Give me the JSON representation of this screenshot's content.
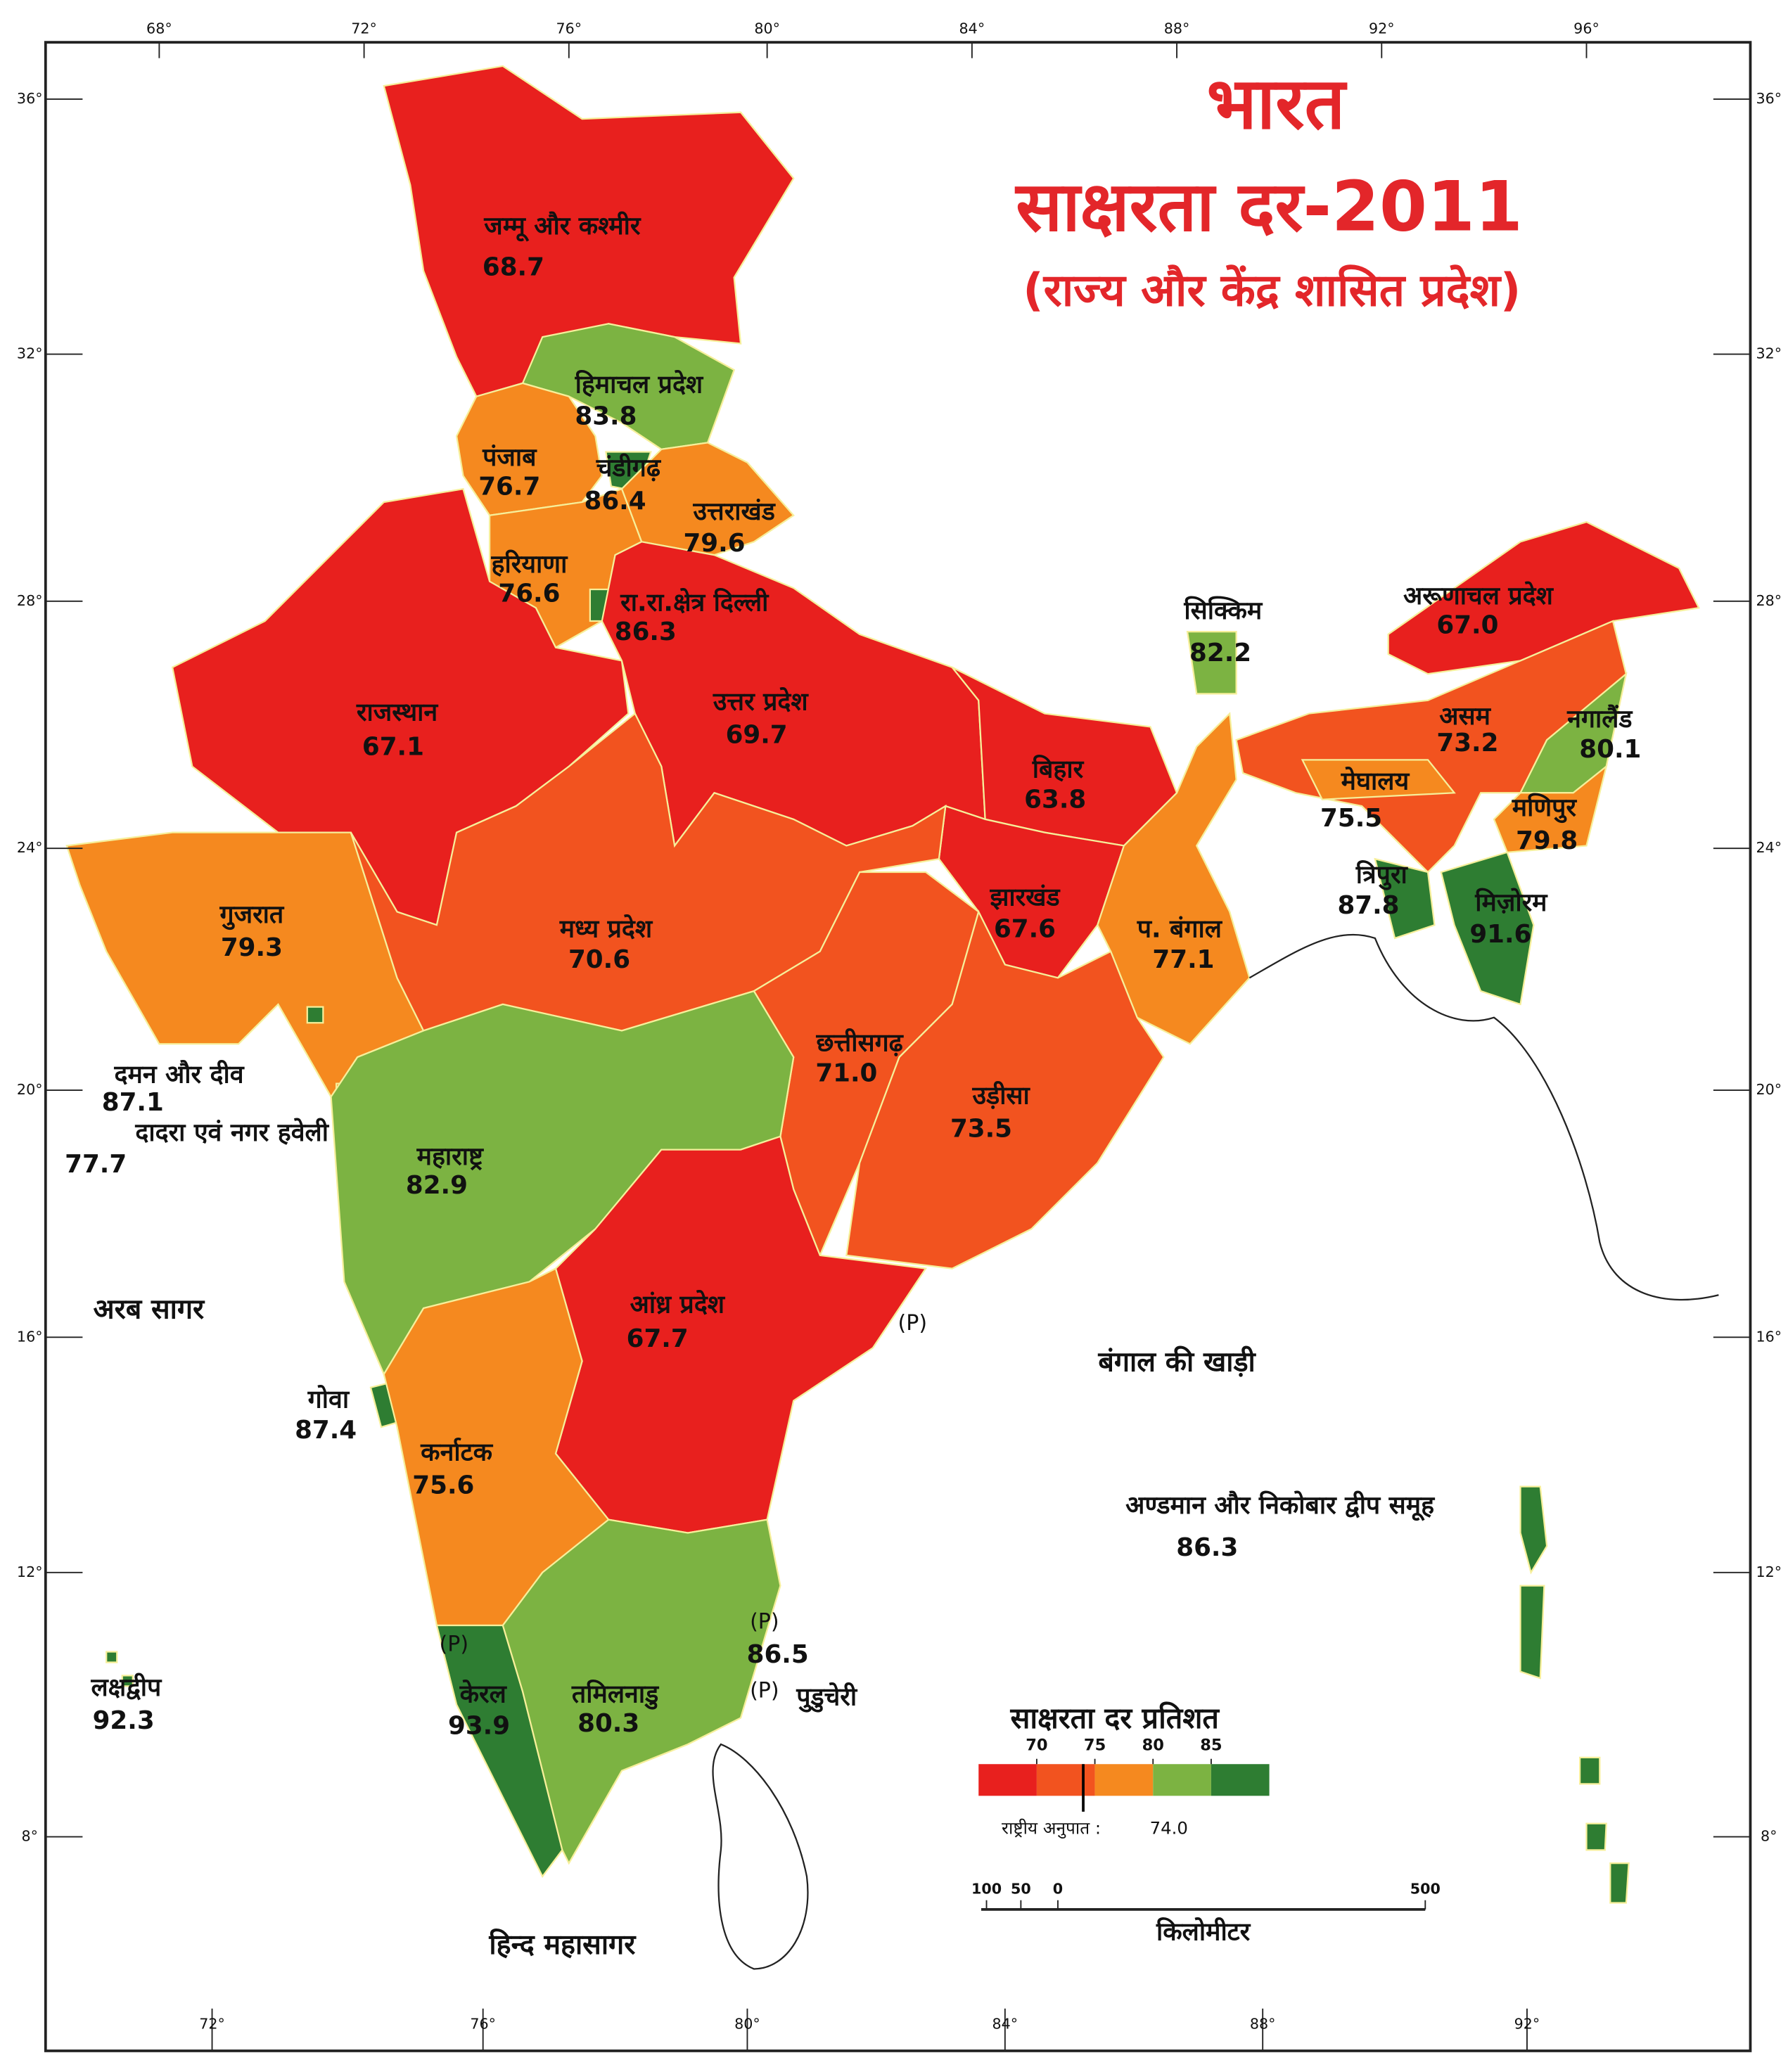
{
  "title": {
    "line1": "भारत",
    "line2": "साक्षरता दर-2011",
    "line3": "(राज्य और केंद्र शासित प्रदेश)"
  },
  "states": [
    {
      "name": "जम्मू और कश्मीर",
      "value": "68.7"
    },
    {
      "name": "हिमाचल प्रदेश",
      "value": "83.8"
    },
    {
      "name": "पंजाब",
      "value": "76.7"
    },
    {
      "name": "चंडीगढ़",
      "value": "86.4"
    },
    {
      "name": "उत्तराखंड",
      "value": "79.6"
    },
    {
      "name": "हरियाणा",
      "value": "76.6"
    },
    {
      "name": "रा.रा.क्षेत्र दिल्ली",
      "value": "86.3"
    },
    {
      "name": "राजस्थान",
      "value": "67.1"
    },
    {
      "name": "उत्तर प्रदेश",
      "value": "69.7"
    },
    {
      "name": "बिहार",
      "value": "63.8"
    },
    {
      "name": "सिक्किम",
      "value": "82.2"
    },
    {
      "name": "अरूणाचल प्रदेश",
      "value": "67.0"
    },
    {
      "name": "असम",
      "value": "73.2"
    },
    {
      "name": "नगालैंड",
      "value": "80.1"
    },
    {
      "name": "मेघालय",
      "value": "75.5"
    },
    {
      "name": "मणिपुर",
      "value": "79.8"
    },
    {
      "name": "त्रिपुरा",
      "value": "87.8"
    },
    {
      "name": "मिज़ोरम",
      "value": "91.6"
    },
    {
      "name": "झारखंड",
      "value": "67.6"
    },
    {
      "name": "प. बंगाल",
      "value": "77.1"
    },
    {
      "name": "गुजरात",
      "value": "79.3"
    },
    {
      "name": "मध्य प्रदेश",
      "value": "70.6"
    },
    {
      "name": "छत्तीसगढ़",
      "value": "71.0"
    },
    {
      "name": "उड़ीसा",
      "value": "73.5"
    },
    {
      "name": "दमन और दीव",
      "value": "87.1"
    },
    {
      "name": "दादरा एवं नगर हवेली",
      "value": "77.7"
    },
    {
      "name": "महाराष्ट्र",
      "value": "82.9"
    },
    {
      "name": "आंध्र प्रदेश",
      "value": "67.7"
    },
    {
      "name": "गोवा",
      "value": "87.4"
    },
    {
      "name": "कर्नाटक",
      "value": "75.6"
    },
    {
      "name": "अण्डमान और निकोबार द्वीप समूह",
      "value": "86.3"
    },
    {
      "name": "पुडुचेरी",
      "value": "86.5"
    },
    {
      "name": "लक्षद्वीप",
      "value": "92.3"
    },
    {
      "name": "केरल",
      "value": "93.9"
    },
    {
      "name": "तमिलनाडु",
      "value": "80.3"
    }
  ],
  "seas": [
    "अरब सागर",
    "बंगाल की खाड़ी",
    "हिन्द महासागर"
  ],
  "provisional_marks": [
    "(P)",
    "(P)",
    "(P)",
    "(P)"
  ],
  "legend": {
    "title": "साक्षरता दर प्रतिशत",
    "ticks": [
      70,
      75,
      80,
      85
    ],
    "colors": [
      "#e8201e",
      "#f2531f",
      "#f5891f",
      "#7cb342",
      "#2e7d32"
    ],
    "national_label": "राष्ट्रीय अनुपात :",
    "national_value": "74.0"
  },
  "scale_bar": {
    "labels": [
      "100",
      "50",
      "0",
      "500"
    ],
    "unit": "किलोमीटर"
  },
  "latitudes": [
    "36°",
    "32°",
    "28°",
    "24°",
    "20°",
    "16°",
    "12°",
    "8°"
  ],
  "longitudes_top": [
    "68°",
    "72°",
    "76°",
    "80°",
    "84°",
    "88°",
    "92°",
    "96°"
  ],
  "longitudes_bottom": [
    "72°",
    "76°",
    "80°",
    "84°",
    "88°",
    "92°"
  ]
}
